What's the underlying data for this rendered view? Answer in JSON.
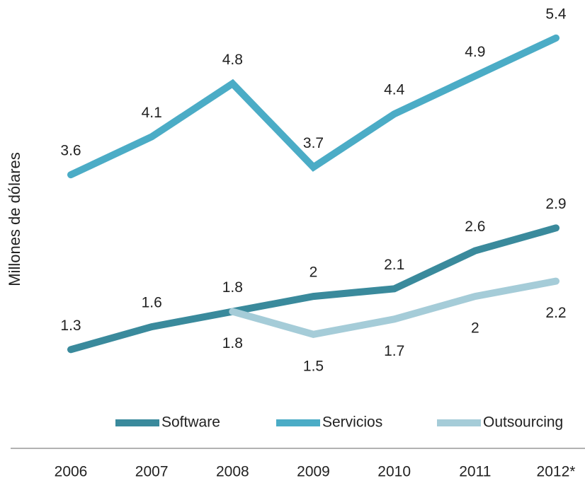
{
  "chart_data": {
    "type": "line",
    "y_label": "Millones de dólares",
    "categories": [
      "2006",
      "2007",
      "2008",
      "2009",
      "2010",
      "2011",
      "2012*"
    ],
    "series": [
      {
        "name": "Software",
        "color": "#3a8a9c",
        "values": [
          1.3,
          1.6,
          1.8,
          2,
          2.1,
          2.6,
          2.9
        ],
        "label_position": "above"
      },
      {
        "name": "Servicios",
        "color": "#4bacc6",
        "values": [
          3.6,
          4.1,
          4.8,
          3.7,
          4.4,
          4.9,
          5.4
        ],
        "label_position": "above"
      },
      {
        "name": "Outsourcing",
        "color": "#a5ccd8",
        "values": [
          null,
          null,
          1.8,
          1.5,
          1.7,
          2,
          2.2
        ],
        "label_position": "below"
      }
    ],
    "ylim": [
      0,
      5.9
    ],
    "legend": "bottom"
  }
}
